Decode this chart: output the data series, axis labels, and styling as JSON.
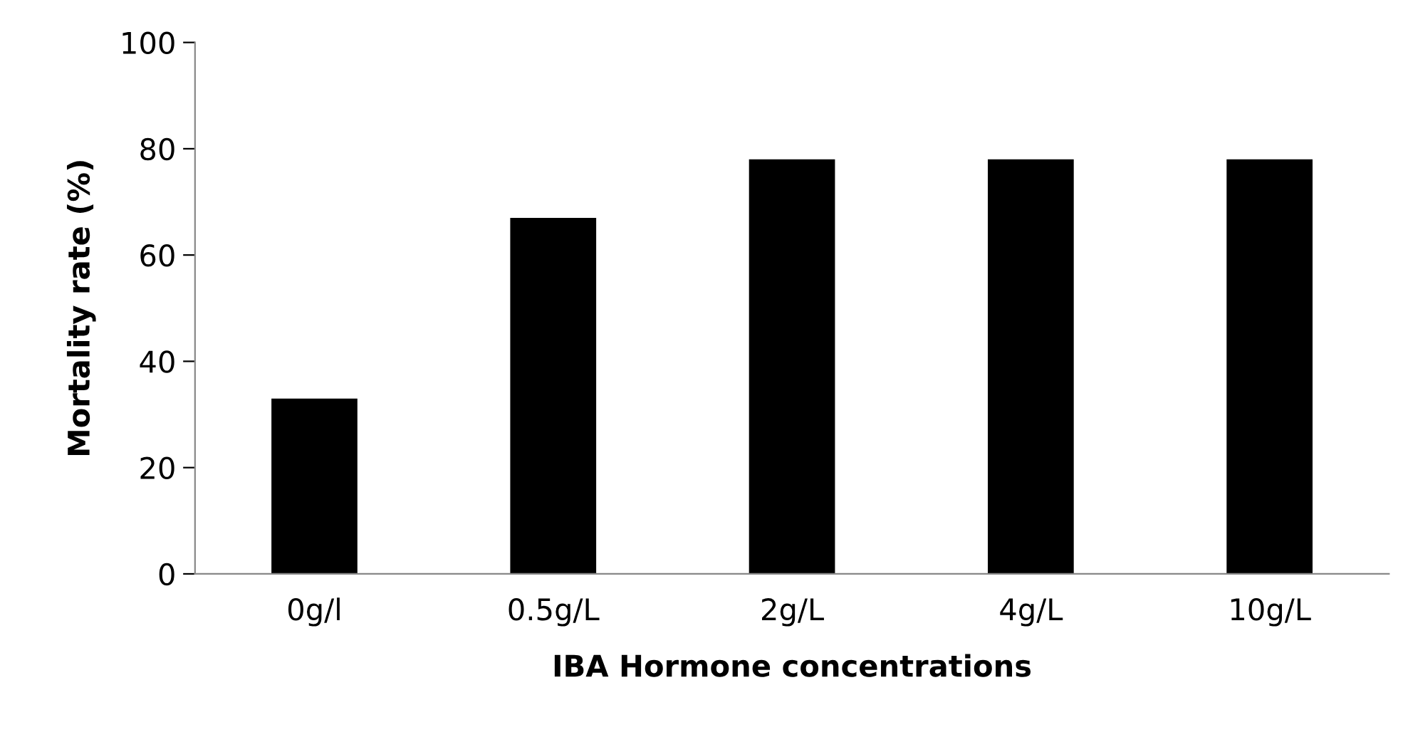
{
  "chart_data": {
    "type": "bar",
    "xlabel": "IBA Hormone concentrations",
    "ylabel": "Mortality rate (%)",
    "categories": [
      "0g/l",
      "0.5g/L",
      "2g/L",
      "4g/L",
      "10g/L"
    ],
    "values": [
      33,
      67,
      78,
      78,
      78
    ],
    "color": "#000000",
    "ylim": [
      0,
      100
    ],
    "yticks": [
      0,
      20,
      40,
      60,
      80,
      100
    ],
    "grid": false,
    "legend": false
  }
}
